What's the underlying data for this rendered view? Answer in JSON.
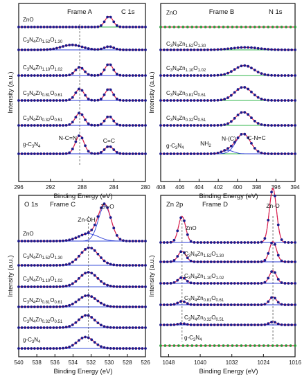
{
  "chart_data": [
    {
      "type": "line",
      "panel": "Frame A",
      "title": "Frame A",
      "element": "C 1s",
      "xlabel": "Binding Energy (eV)",
      "ylabel": "Intensity (a.u.)",
      "xlim": [
        296,
        280
      ],
      "xticks": [
        296,
        292,
        288,
        284,
        280
      ],
      "dashed_line_x": 288.3,
      "annotations": [
        {
          "text": "N-C=N",
          "x": 289.8,
          "row": 0
        },
        {
          "text": "C=C",
          "x": 284.6,
          "row": 0
        }
      ],
      "series": [
        {
          "name": "ZnO",
          "peaks": [
            {
              "center": 284.6,
              "height": 0.65,
              "width": 0.5
            }
          ],
          "line": "green"
        },
        {
          "name": "C3N4Zn1.52O1.30",
          "peaks": [
            {
              "center": 289.3,
              "height": 0.3,
              "width": 1.3
            },
            {
              "center": 284.6,
              "height": 0.2,
              "width": 0.6
            }
          ],
          "line": "green"
        },
        {
          "name": "C3N4Zn1.10O1.02",
          "peaks": [
            {
              "center": 288.3,
              "height": 0.5,
              "width": 0.55
            },
            {
              "center": 284.6,
              "height": 0.7,
              "width": 0.5
            }
          ],
          "line": "blue"
        },
        {
          "name": "C3N4Zn0.81O0.61",
          "peaks": [
            {
              "center": 288.3,
              "height": 0.7,
              "width": 0.55
            },
            {
              "center": 284.6,
              "height": 0.7,
              "width": 0.5
            }
          ],
          "line": "blue"
        },
        {
          "name": "C3N4Zn0.32O0.51",
          "peaks": [
            {
              "center": 288.3,
              "height": 0.75,
              "width": 0.55
            },
            {
              "center": 284.6,
              "height": 0.55,
              "width": 0.5
            }
          ],
          "line": "green"
        },
        {
          "name": "g-C3N4",
          "peaks": [
            {
              "center": 288.3,
              "height": 1.1,
              "width": 0.55
            },
            {
              "center": 284.6,
              "height": 0.45,
              "width": 0.55
            }
          ],
          "line": "green"
        }
      ]
    },
    {
      "type": "line",
      "panel": "Frame B",
      "title": "Frame B",
      "element": "N 1s",
      "xlabel": "Binding Energy (eV)",
      "ylabel": "",
      "xlim": [
        408,
        394
      ],
      "xticks": [
        408,
        406,
        404,
        402,
        400,
        398,
        396,
        394
      ],
      "annotations": [
        {
          "text": "NH2",
          "x": 403.3,
          "row": 0
        },
        {
          "text": "N-(C)",
          "x": 400.9,
          "row": 0
        },
        {
          "text": "C-N=C",
          "x": 398.0,
          "row": 0
        }
      ],
      "series": [
        {
          "name": "ZnO",
          "peaks": [],
          "line": "green"
        },
        {
          "name": "C3N4Zn1.52O1.30",
          "peaks": [
            {
              "center": 399.2,
              "height": 0.15,
              "width": 1.4
            }
          ],
          "line": "green"
        },
        {
          "name": "C3N4Zn1.10O1.02",
          "peaks": [
            {
              "center": 399.3,
              "height": 0.6,
              "width": 1.0
            }
          ],
          "line": "green"
        },
        {
          "name": "C3N4Zn0.81O0.61",
          "peaks": [
            {
              "center": 399.4,
              "height": 0.8,
              "width": 0.9
            }
          ],
          "line": "green"
        },
        {
          "name": "C3N4Zn0.32O0.51",
          "peaks": [
            {
              "center": 399.4,
              "height": 0.8,
              "width": 0.8
            }
          ],
          "line": "green"
        },
        {
          "name": "g-C3N4",
          "peaks": [
            {
              "center": 399.4,
              "height": 1.2,
              "width": 0.75
            },
            {
              "center": 401.0,
              "height": 0.2,
              "width": 0.6
            }
          ],
          "line": "green"
        }
      ]
    },
    {
      "type": "line",
      "panel": "Frame C",
      "title": "Frame C",
      "element": "O 1s",
      "xlabel": "Binding Energy (eV)",
      "ylabel": "Intensity (a.u.)",
      "xlim": [
        540,
        526
      ],
      "xticks": [
        540,
        538,
        536,
        534,
        532,
        530,
        528,
        526
      ],
      "dashed_line_x": 532.3,
      "annotations": [
        {
          "text": "Zn-OH",
          "x": 532.5,
          "row": 0
        },
        {
          "text": "Zn-O",
          "x": 530.2,
          "row": 0
        }
      ],
      "series": [
        {
          "name": "ZnO",
          "peaks": [
            {
              "center": 530.5,
              "height": 1.7,
              "width": 0.7
            },
            {
              "center": 532.3,
              "height": 0.35,
              "width": 1.1
            }
          ],
          "line": "blue"
        },
        {
          "name": "C3N4Zn1.52O1.30",
          "peaks": [
            {
              "center": 532.2,
              "height": 0.85,
              "width": 1.0
            }
          ],
          "line": "blue"
        },
        {
          "name": "C3N4Zn1.10O1.02",
          "peaks": [
            {
              "center": 532.3,
              "height": 0.7,
              "width": 1.0
            }
          ],
          "line": "blue"
        },
        {
          "name": "C3N4Zn0.81O0.61",
          "peaks": [
            {
              "center": 532.4,
              "height": 0.55,
              "width": 1.0
            }
          ],
          "line": "blue"
        },
        {
          "name": "C3N4Zn0.32O0.51",
          "peaks": [
            {
              "center": 532.5,
              "height": 0.6,
              "width": 0.9
            }
          ],
          "line": "blue"
        },
        {
          "name": "g-C3N4",
          "peaks": [
            {
              "center": 532.6,
              "height": 0.55,
              "width": 0.9
            }
          ],
          "line": "blue"
        }
      ]
    },
    {
      "type": "line",
      "panel": "Frame D",
      "title": "Frame D",
      "element": "Zn 2p",
      "xlabel": "Binding Energy (eV)",
      "ylabel": "",
      "xlim": [
        1050,
        1016
      ],
      "xticks": [
        1048,
        1040,
        1032,
        1024,
        1016
      ],
      "dashed_line_x": [
        1044.6,
        1021.6
      ],
      "annotations": [
        {
          "text": "Zn-O",
          "x": 1021.6,
          "row": 0
        }
      ],
      "series": [
        {
          "name": "ZnO",
          "peaks": [
            {
              "center": 1044.6,
              "height": 1.35,
              "width": 0.9
            },
            {
              "center": 1021.6,
              "height": 2.8,
              "width": 0.9
            }
          ],
          "line": "blue"
        },
        {
          "name": "C3N4Zn1.52O1.30",
          "peaks": [
            {
              "center": 1044.6,
              "height": 0.55,
              "width": 1.0
            },
            {
              "center": 1021.6,
              "height": 1.05,
              "width": 0.9
            }
          ],
          "line": "blue"
        },
        {
          "name": "C3N4Zn1.10O1.02",
          "peaks": [
            {
              "center": 1044.6,
              "height": 0.3,
              "width": 1.0
            },
            {
              "center": 1021.6,
              "height": 0.65,
              "width": 0.9
            }
          ],
          "line": "blue"
        },
        {
          "name": "C3N4Zn0.81O0.61",
          "peaks": [
            {
              "center": 1044.6,
              "height": 0.18,
              "width": 1.0
            },
            {
              "center": 1021.6,
              "height": 0.4,
              "width": 0.9
            }
          ],
          "line": "blue"
        },
        {
          "name": "C3N4Zn0.32O0.51",
          "peaks": [
            {
              "center": 1044.6,
              "height": 0.07,
              "width": 1.0
            },
            {
              "center": 1021.6,
              "height": 0.16,
              "width": 0.9
            }
          ],
          "line": "blue"
        },
        {
          "name": "g-C3N4",
          "peaks": [],
          "line": "green"
        }
      ]
    }
  ],
  "sample_labels": [
    {
      "base": "ZnO",
      "parts": []
    },
    {
      "base": "C",
      "parts": [
        [
          "3",
          "N"
        ],
        [
          "4",
          "Zn"
        ],
        [
          "1.52",
          "O"
        ],
        [
          "1.30",
          ""
        ]
      ]
    },
    {
      "base": "C",
      "parts": [
        [
          "3",
          "N"
        ],
        [
          "4",
          "Zn"
        ],
        [
          "1.10",
          "O"
        ],
        [
          "1.02",
          ""
        ]
      ]
    },
    {
      "base": "C",
      "parts": [
        [
          "3",
          "N"
        ],
        [
          "4",
          "Zn"
        ],
        [
          "0.81",
          "O"
        ],
        [
          "0.61",
          ""
        ]
      ]
    },
    {
      "base": "C",
      "parts": [
        [
          "3",
          "N"
        ],
        [
          "4",
          "Zn"
        ],
        [
          "0.32",
          "O"
        ],
        [
          "0.51",
          ""
        ]
      ]
    },
    {
      "base": "g-C",
      "parts": [
        [
          "3",
          "N"
        ],
        [
          "4",
          ""
        ]
      ]
    }
  ],
  "colors": {
    "data_marker": "#1a1a8c",
    "fit_line": "#e0204a",
    "component_blue": "#2b3bd6",
    "baseline_green": "#2fb54a",
    "baseline_blue": "#3a4fd8",
    "zn_marker_green": "#2a9a3a",
    "axis": "#111111"
  }
}
